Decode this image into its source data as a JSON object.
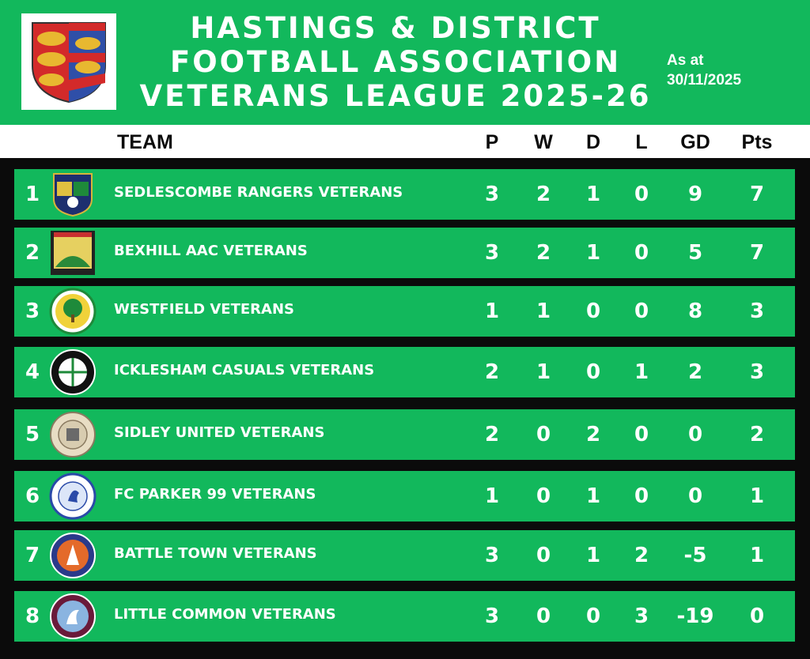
{
  "header": {
    "title_lines": [
      "HASTINGS & DISTRICT",
      "FOOTBALL ASSOCIATION",
      "VETERANS LEAGUE 2025-26"
    ],
    "as_at_label": "As at",
    "as_at_date": "30/11/2025"
  },
  "columns": {
    "team": "TEAM",
    "p": "P",
    "w": "W",
    "d": "D",
    "l": "L",
    "gd": "GD",
    "pts": "Pts"
  },
  "table": [
    {
      "pos": "1",
      "team": "SEDLESCOMBE RANGERS VETERANS",
      "p": "3",
      "w": "2",
      "d": "1",
      "l": "0",
      "gd": "9",
      "pts": "7"
    },
    {
      "pos": "2",
      "team": "BEXHILL AAC VETERANS",
      "p": "3",
      "w": "2",
      "d": "1",
      "l": "0",
      "gd": "5",
      "pts": "7"
    },
    {
      "pos": "3",
      "team": "WESTFIELD VETERANS",
      "p": "1",
      "w": "1",
      "d": "0",
      "l": "0",
      "gd": "8",
      "pts": "3"
    },
    {
      "pos": "4",
      "team": "ICKLESHAM CASUALS VETERANS",
      "p": "2",
      "w": "1",
      "d": "0",
      "l": "1",
      "gd": "2",
      "pts": "3"
    },
    {
      "pos": "5",
      "team": "SIDLEY UNITED VETERANS",
      "p": "2",
      "w": "0",
      "d": "2",
      "l": "0",
      "gd": "0",
      "pts": "2"
    },
    {
      "pos": "6",
      "team": "FC PARKER 99 VETERANS",
      "p": "1",
      "w": "0",
      "d": "1",
      "l": "0",
      "gd": "0",
      "pts": "1"
    },
    {
      "pos": "7",
      "team": "BATTLE TOWN VETERANS",
      "p": "3",
      "w": "0",
      "d": "1",
      "l": "2",
      "gd": "-5",
      "pts": "1"
    },
    {
      "pos": "8",
      "team": "LITTLE COMMON VETERANS",
      "p": "3",
      "w": "0",
      "d": "0",
      "l": "3",
      "gd": "-19",
      "pts": "0"
    }
  ],
  "badges": [
    "sedlescombe-rangers-badge-icon",
    "bexhill-aac-badge-icon",
    "westfield-badge-icon",
    "icklesham-casuals-badge-icon",
    "sidley-united-badge-icon",
    "fc-parker-99-badge-icon",
    "battle-town-badge-icon",
    "little-common-badge-icon"
  ],
  "colors": {
    "green": "#12b85c",
    "black": "#0b0b0b",
    "white": "#ffffff"
  }
}
